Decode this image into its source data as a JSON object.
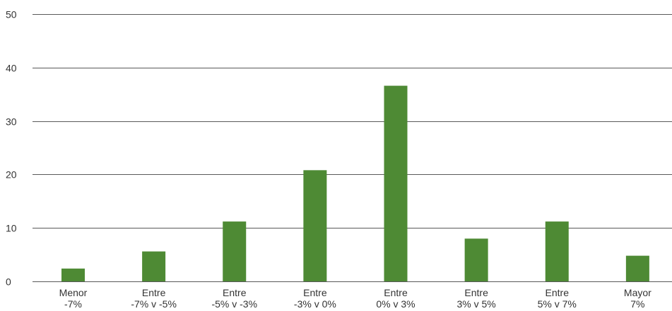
{
  "chart_data": {
    "type": "bar",
    "title": "",
    "xlabel": "",
    "ylabel": "",
    "ylim": [
      0,
      50
    ],
    "yticks": [
      0,
      10,
      20,
      30,
      40,
      50
    ],
    "grid": true,
    "legend": "none",
    "categories": [
      [
        "Menor",
        "-7%"
      ],
      [
        "Entre",
        "-7% v -5%"
      ],
      [
        "Entre",
        "-5% v -3%"
      ],
      [
        "Entre",
        "-3% v 0%"
      ],
      [
        "Entre",
        "0% v 3%"
      ],
      [
        "Entre",
        "3% v 5%"
      ],
      [
        "Entre",
        "5% v 7%"
      ],
      [
        "Mayor",
        "7%"
      ]
    ],
    "values": [
      2.4,
      5.6,
      11.2,
      20.8,
      36.6,
      8.0,
      11.2,
      4.8
    ],
    "bar_color": "#4e8a34",
    "grid_color": "#595959"
  }
}
